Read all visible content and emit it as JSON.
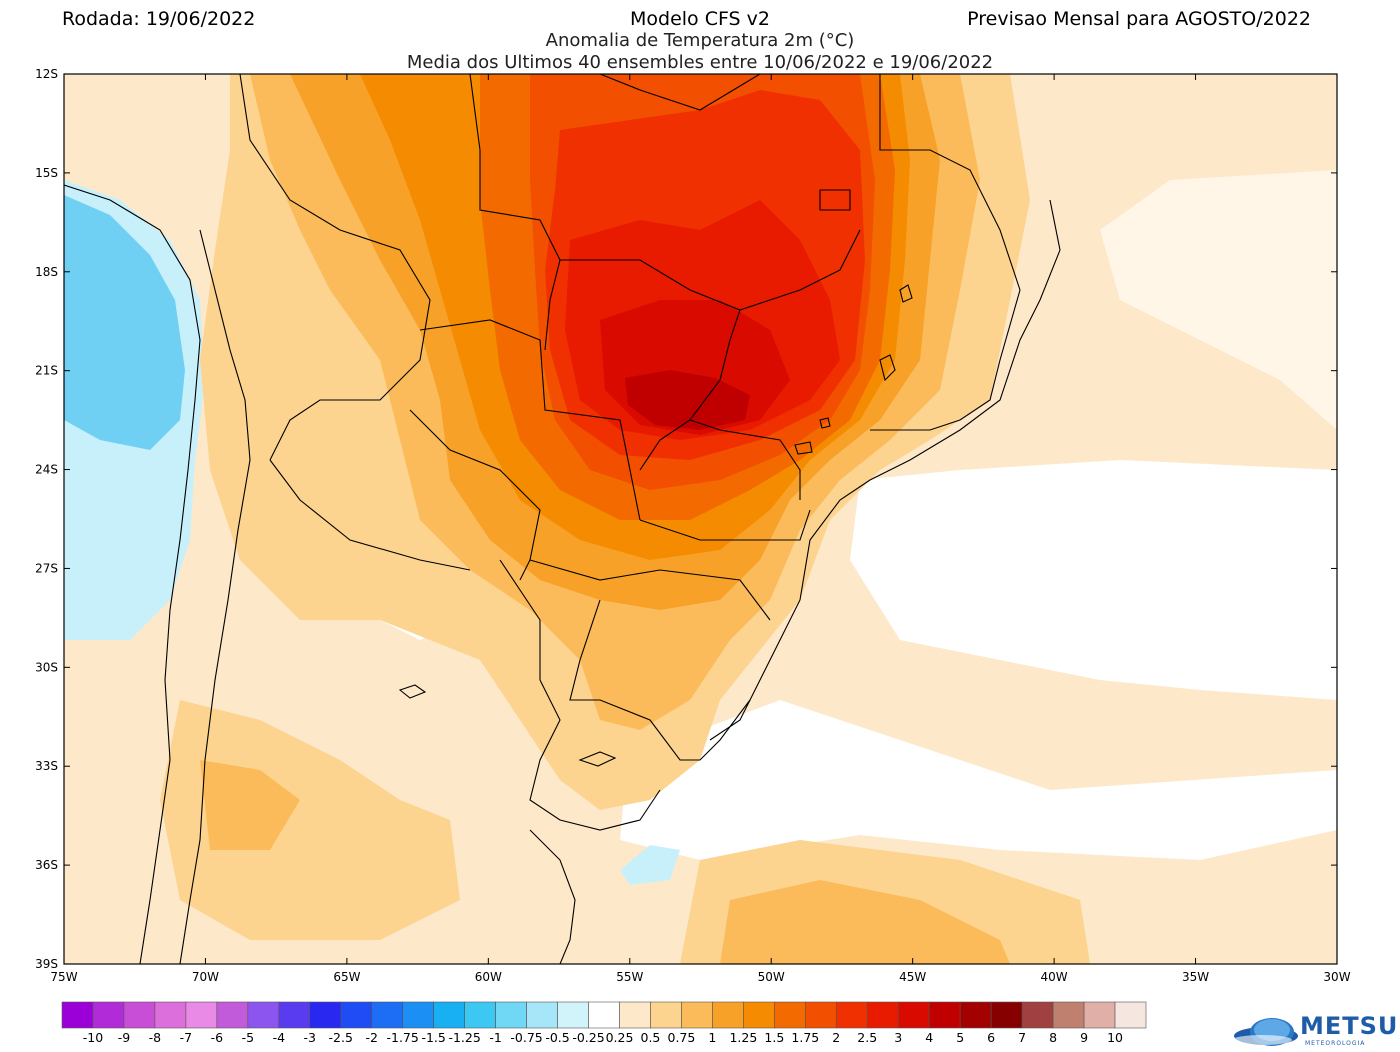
{
  "header": {
    "run": "Rodada: 19/06/2022",
    "model": "Modelo CFS v2",
    "forecast": "Previsao Mensal para AGOSTO/2022",
    "subtitle_1": "Anomalia de Temperatura 2m (°C)",
    "subtitle_2": "Media dos Ultimos 40 ensembles entre 10/06/2022 e 19/06/2022"
  },
  "map": {
    "lon_range": [
      -75,
      -30
    ],
    "lat_range": [
      -39,
      -12
    ],
    "lat_ticks": [
      "12S",
      "15S",
      "18S",
      "21S",
      "24S",
      "27S",
      "30S",
      "33S",
      "36S",
      "39S"
    ],
    "lon_ticks": [
      "75W",
      "70W",
      "65W",
      "60W",
      "55W",
      "50W",
      "45W",
      "40W",
      "35W",
      "30W"
    ],
    "lat_tick_values": [
      -12,
      -15,
      -18,
      -21,
      -24,
      -27,
      -30,
      -33,
      -36,
      -39
    ],
    "lon_tick_values": [
      -75,
      -70,
      -65,
      -60,
      -55,
      -50,
      -45,
      -40,
      -35,
      -30
    ],
    "variable": "2m temperature anomaly",
    "anomaly_regions": [
      {
        "name": "central-west-southeast Brazil hotspot",
        "center": [
          -53,
          -22
        ],
        "max_anomaly": 4
      },
      {
        "name": "Pacific coast cool anomaly",
        "center": [
          -73,
          -20
        ],
        "min_anomaly": -1
      }
    ]
  },
  "colorbar": {
    "labels": [
      "-10",
      "-9",
      "-8",
      "-7",
      "-6",
      "-5",
      "-4",
      "-3",
      "-2.5",
      "-2",
      "-1.75",
      "-1.5",
      "-1.25",
      "-1",
      "-0.75",
      "-0.5",
      "-0.25",
      "0.25",
      "0.5",
      "0.75",
      "1",
      "1.25",
      "1.5",
      "1.75",
      "2",
      "2.5",
      "3",
      "4",
      "5",
      "6",
      "7",
      "8",
      "9",
      "10"
    ],
    "colors": [
      "#9b00d8",
      "#b22bd9",
      "#c84ed7",
      "#dd6fdc",
      "#e98ae6",
      "#c25bd9",
      "#8c55f0",
      "#5a3cf0",
      "#2828f0",
      "#1f4cf5",
      "#1e6ef5",
      "#1c8ff5",
      "#19b0f3",
      "#3cc8f2",
      "#70d8f5",
      "#a6e6f8",
      "#d1f3fa",
      "#ffffff",
      "#fde8c9",
      "#fcd38f",
      "#fbbb5a",
      "#f8a128",
      "#f58b00",
      "#f36a00",
      "#f24f00",
      "#f03000",
      "#e81a00",
      "#d90a00",
      "#c00000",
      "#a30000",
      "#860000",
      "#a04040",
      "#c08070",
      "#e0b0a8",
      "#f6e6e0"
    ]
  },
  "logo": {
    "name": "METSUL",
    "tagline": "METEOROLOGIA"
  }
}
